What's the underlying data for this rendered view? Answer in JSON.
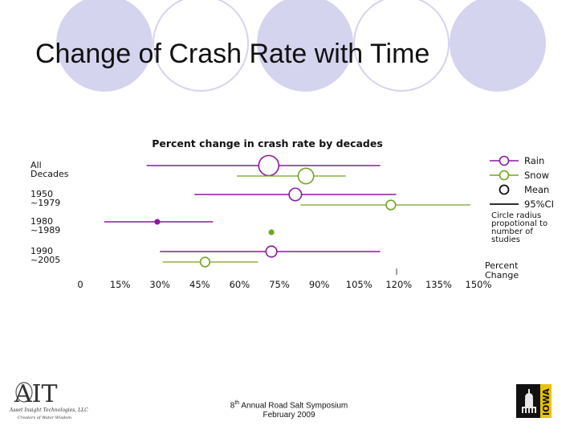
{
  "slide": {
    "title": "Change of Crash Rate with Time"
  },
  "chart_data": {
    "type": "forest",
    "title": "Percent change in crash rate by decades",
    "x_tick_labels": [
      "0",
      "15%",
      "30%",
      "45%",
      "60%",
      "75%",
      "90%",
      "105%",
      "120%",
      "135%",
      "150%"
    ],
    "x_ticks": [
      0,
      15,
      30,
      45,
      60,
      75,
      90,
      105,
      120,
      135,
      150
    ],
    "xlim": [
      0,
      150
    ],
    "xlabel": "Percent Change",
    "categories": [
      "All Decades",
      "1950 ~1979",
      "1980 ~1989",
      "1990 ~2005"
    ],
    "series": [
      {
        "name": "Rain",
        "color": "#8b1a9c",
        "points": [
          {
            "category": "All Decades",
            "mean": 71,
            "ci_low": 25,
            "ci_high": 113,
            "n_studies": 10
          },
          {
            "category": "1950 ~1979",
            "mean": 81,
            "ci_low": 43,
            "ci_high": 119,
            "n_studies": 5
          },
          {
            "category": "1980 ~1989",
            "mean": 29,
            "ci_low": 9,
            "ci_high": 50,
            "n_studies": 1
          },
          {
            "category": "1990 ~2005",
            "mean": 72,
            "ci_low": 30,
            "ci_high": 113,
            "n_studies": 4
          }
        ]
      },
      {
        "name": "Snow",
        "color": "#76a321",
        "points": [
          {
            "category": "All Decades",
            "mean": 85,
            "ci_low": 59,
            "ci_high": 100,
            "n_studies": 7
          },
          {
            "category": "1950 ~1979",
            "mean": 117,
            "ci_low": 83,
            "ci_high": 147,
            "n_studies": 3
          },
          {
            "category": "1980 ~1989",
            "mean": 72,
            "ci_low": 72,
            "ci_high": 72,
            "n_studies": 1
          },
          {
            "category": "1990 ~2005",
            "mean": 47,
            "ci_low": 31,
            "ci_high": 67,
            "n_studies": 3
          }
        ]
      }
    ],
    "legend": {
      "entries": [
        {
          "label": "Rain",
          "symbol": "rain"
        },
        {
          "label": "Snow",
          "symbol": "snow"
        },
        {
          "label": "Mean",
          "symbol": "mean"
        },
        {
          "label": "95%CI",
          "symbol": "ci"
        }
      ],
      "note": "Circle radius propotional to number of studies",
      "placement": "right"
    },
    "grid": false
  },
  "category_labels": [
    [
      "All",
      "Decades"
    ],
    [
      "1950",
      "~1979"
    ],
    [
      "1980",
      "~1989"
    ],
    [
      "1990",
      "~2005"
    ]
  ],
  "legend_note_lines": [
    "Circle radius",
    "propotional to",
    "number of",
    "studies"
  ],
  "xlabel_lines": [
    "Percent",
    "Change"
  ],
  "logo_ait": {
    "mark": "AIT",
    "company": "Asset Insight Technologies, LLC",
    "tagline": "Creators of Water Wisdom"
  },
  "footer": {
    "ordinal_number": "8",
    "ordinal_suffix": "th",
    "event": " Annual Road Salt Symposium",
    "date": "February 2009"
  },
  "logo_iowa": {
    "text": "IOWA"
  }
}
